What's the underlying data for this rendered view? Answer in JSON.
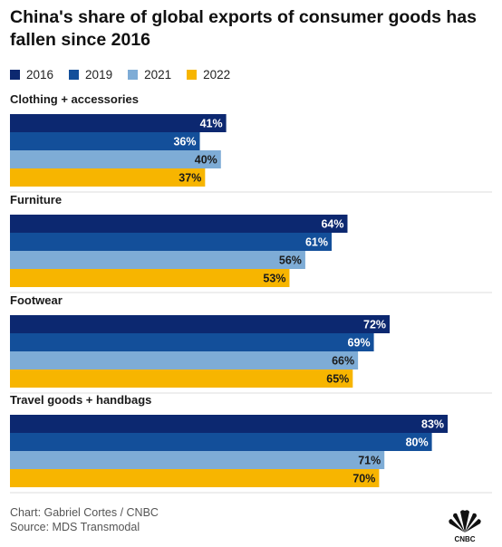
{
  "title": "China's share of global exports of consumer goods has fallen since 2016",
  "legend": [
    {
      "name": "2016",
      "color": "#0c2870"
    },
    {
      "name": "2019",
      "color": "#134f9a"
    },
    {
      "name": "2021",
      "color": "#7eacd6"
    },
    {
      "name": "2022",
      "color": "#f7b500"
    }
  ],
  "chart_data": {
    "type": "bar",
    "orientation": "horizontal",
    "categories": [
      "Clothing + accessories",
      "Furniture",
      "Footwear",
      "Travel goods + handbags"
    ],
    "series": [
      {
        "name": "2016",
        "values": [
          41,
          64,
          72,
          83
        ]
      },
      {
        "name": "2019",
        "values": [
          36,
          61,
          69,
          80
        ]
      },
      {
        "name": "2021",
        "values": [
          40,
          56,
          66,
          71
        ]
      },
      {
        "name": "2022",
        "values": [
          37,
          53,
          65,
          70
        ]
      }
    ],
    "value_suffix": "%",
    "xlim": [
      0,
      100
    ],
    "grid": false,
    "legend_position": "top-left"
  },
  "footer": {
    "credit": "Chart: Gabriel Cortes / CNBC",
    "source": "Source: MDS Transmodal"
  },
  "logo": {
    "icon": "cnbc-peacock-icon",
    "text": "CNBC"
  }
}
